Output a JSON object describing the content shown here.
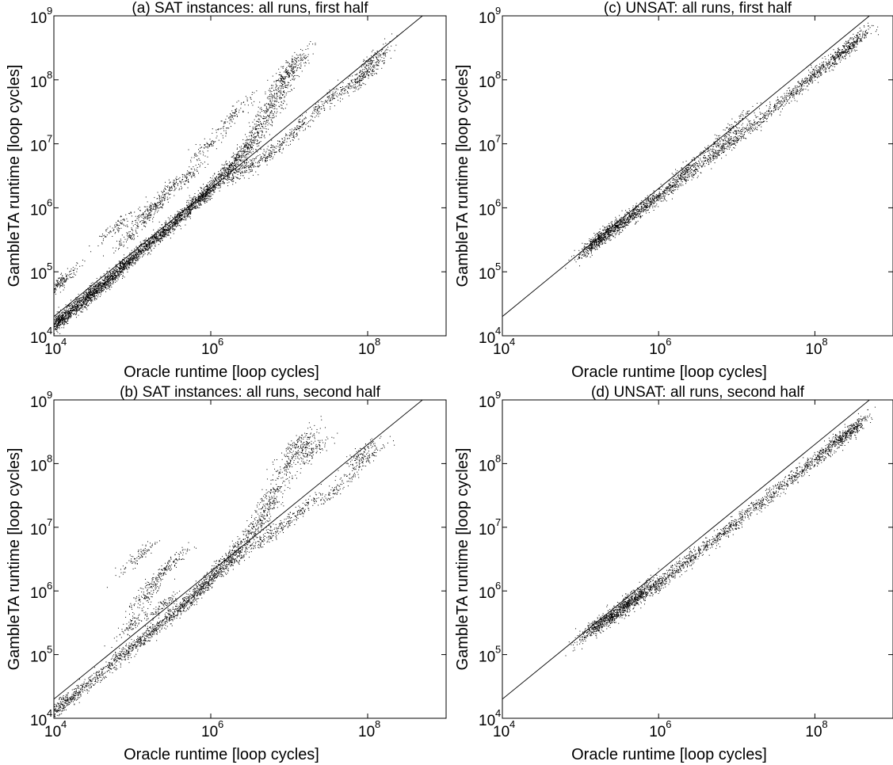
{
  "chart_data": [
    {
      "id": "a",
      "type": "scatter",
      "title": "(a) SAT instances: all runs, first half",
      "xlabel": "Oracle runtime [loop cycles]",
      "ylabel": "GambleTA runtime [loop cycles]",
      "xscale": "log",
      "yscale": "log",
      "xlim": [
        10000,
        1000000000
      ],
      "ylim": [
        10000,
        1000000000
      ],
      "xticks": [
        {
          "base": "10",
          "exp": "4"
        },
        {
          "base": "10",
          "exp": "6"
        },
        {
          "base": "10",
          "exp": "8"
        }
      ],
      "yticks": [
        {
          "base": "10",
          "exp": "4"
        },
        {
          "base": "10",
          "exp": "5"
        },
        {
          "base": "10",
          "exp": "6"
        },
        {
          "base": "10",
          "exp": "7"
        },
        {
          "base": "10",
          "exp": "8"
        },
        {
          "base": "10",
          "exp": "9"
        }
      ],
      "reference_line": {
        "slope": 1,
        "factor": 2.0
      },
      "grid": false,
      "points": [
        [
          11000,
          14500
        ],
        [
          11500,
          16000
        ],
        [
          12000,
          17000
        ],
        [
          12500,
          18000
        ],
        [
          13000,
          20000
        ],
        [
          14000,
          22000
        ],
        [
          11200,
          60000
        ],
        [
          12800,
          75000
        ],
        [
          20000,
          28000
        ],
        [
          22000,
          30000
        ],
        [
          25000,
          40000
        ],
        [
          30000,
          45000
        ],
        [
          32000,
          50000
        ],
        [
          35000,
          52000
        ],
        [
          40000,
          60000
        ],
        [
          45000,
          65000
        ],
        [
          50000,
          70000
        ],
        [
          60000,
          90000
        ],
        [
          70000,
          110000
        ],
        [
          80000,
          130000
        ],
        [
          90000,
          150000
        ],
        [
          100000,
          160000
        ],
        [
          120000,
          200000
        ],
        [
          150000,
          250000
        ],
        [
          180000,
          300000
        ],
        [
          200000,
          330000
        ],
        [
          250000,
          420000
        ],
        [
          300000,
          500000
        ],
        [
          350000,
          600000
        ],
        [
          400000,
          700000
        ],
        [
          500000,
          900000
        ],
        [
          600000,
          1100000
        ],
        [
          700000,
          1300000
        ],
        [
          800000,
          1500000
        ],
        [
          900000,
          1700000
        ],
        [
          1000000,
          2000000
        ],
        [
          1200000,
          2600000
        ],
        [
          1500000,
          3500000
        ],
        [
          2000000,
          5000000
        ],
        [
          2500000,
          7000000
        ],
        [
          3000000,
          9000000
        ],
        [
          4000000,
          15000000
        ],
        [
          5000000,
          25000000
        ],
        [
          6000000,
          40000000
        ],
        [
          7000000,
          60000000
        ],
        [
          8000000,
          100000000
        ],
        [
          10000000,
          120000000
        ],
        [
          12000000,
          200000000
        ],
        [
          2000000,
          3500000
        ],
        [
          3000000,
          4500000
        ],
        [
          5000000,
          6000000
        ],
        [
          8000000,
          10000000
        ],
        [
          15000000,
          20000000
        ],
        [
          30000000,
          45000000
        ],
        [
          60000000,
          80000000
        ],
        [
          90000000,
          110000000
        ],
        [
          100000,
          400000
        ],
        [
          200000,
          1000000
        ],
        [
          300000,
          2000000
        ],
        [
          500000,
          3000000
        ],
        [
          60000,
          500000
        ],
        [
          150000,
          800000
        ],
        [
          1000000,
          10000000
        ],
        [
          2000000,
          30000000
        ],
        [
          110000000,
          200000000
        ],
        [
          120000000,
          170000000
        ]
      ]
    },
    {
      "id": "c",
      "type": "scatter",
      "title": "(c) UNSAT: all runs, first half",
      "xlabel": "Oracle runtime [loop cycles]",
      "ylabel": "GambleTA runtime [loop cycles]",
      "xscale": "log",
      "yscale": "log",
      "xlim": [
        10000,
        1000000000
      ],
      "ylim": [
        10000,
        1000000000
      ],
      "xticks": [
        {
          "base": "10",
          "exp": "4"
        },
        {
          "base": "10",
          "exp": "6"
        },
        {
          "base": "10",
          "exp": "8"
        }
      ],
      "yticks": [
        {
          "base": "10",
          "exp": "4"
        },
        {
          "base": "10",
          "exp": "5"
        },
        {
          "base": "10",
          "exp": "6"
        },
        {
          "base": "10",
          "exp": "7"
        },
        {
          "base": "10",
          "exp": "8"
        },
        {
          "base": "10",
          "exp": "9"
        }
      ],
      "reference_line": {
        "slope": 1,
        "factor": 2.0
      },
      "grid": false,
      "points": [
        [
          140000,
          260000
        ],
        [
          150000,
          280000
        ],
        [
          160000,
          300000
        ],
        [
          180000,
          330000
        ],
        [
          200000,
          380000
        ],
        [
          250000,
          450000
        ],
        [
          300000,
          520000
        ],
        [
          350000,
          580000
        ],
        [
          400000,
          650000
        ],
        [
          500000,
          800000
        ],
        [
          600000,
          950000
        ],
        [
          800000,
          1200000
        ],
        [
          1000000,
          1500000
        ],
        [
          1500000,
          2200000
        ],
        [
          2000000,
          2800000
        ],
        [
          3000000,
          4000000
        ],
        [
          5000000,
          6500000
        ],
        [
          8000000,
          10000000
        ],
        [
          10000000,
          12500000
        ],
        [
          20000000,
          24000000
        ],
        [
          30000000,
          36000000
        ],
        [
          50000000,
          60000000
        ],
        [
          80000000,
          95000000
        ],
        [
          100000000,
          120000000
        ],
        [
          150000000,
          180000000
        ],
        [
          200000000,
          240000000
        ],
        [
          250000000,
          300000000
        ],
        [
          300000000,
          350000000
        ],
        [
          320000000,
          380000000
        ],
        [
          2000000,
          3500000
        ],
        [
          5000000,
          9000000
        ],
        [
          10000000,
          20000000
        ]
      ]
    },
    {
      "id": "b",
      "type": "scatter",
      "title": "(b) SAT instances: all runs, second half",
      "xlabel": "Oracle runtime [loop cycles]",
      "ylabel": "GambleTA runtime [loop cycles]",
      "xscale": "log",
      "yscale": "log",
      "xlim": [
        10000,
        1000000000
      ],
      "ylim": [
        10000,
        1000000000
      ],
      "xticks": [
        {
          "base": "10",
          "exp": "4"
        },
        {
          "base": "10",
          "exp": "6"
        },
        {
          "base": "10",
          "exp": "8"
        }
      ],
      "yticks": [
        {
          "base": "10",
          "exp": "4"
        },
        {
          "base": "10",
          "exp": "5"
        },
        {
          "base": "10",
          "exp": "6"
        },
        {
          "base": "10",
          "exp": "7"
        },
        {
          "base": "10",
          "exp": "8"
        },
        {
          "base": "10",
          "exp": "9"
        }
      ],
      "reference_line": {
        "slope": 1,
        "factor": 2.0
      },
      "grid": false,
      "points": [
        [
          10000,
          13000
        ],
        [
          12000,
          15500
        ],
        [
          15000,
          19000
        ],
        [
          20000,
          25000
        ],
        [
          30000,
          38000
        ],
        [
          50000,
          64000
        ],
        [
          80000,
          100000
        ],
        [
          100000,
          130000
        ],
        [
          150000,
          195000
        ],
        [
          200000,
          260000
        ],
        [
          300000,
          390000
        ],
        [
          400000,
          520000
        ],
        [
          500000,
          650000
        ],
        [
          600000,
          800000
        ],
        [
          800000,
          1100000
        ],
        [
          1000000,
          1500000
        ],
        [
          1200000,
          2000000
        ],
        [
          1500000,
          2800000
        ],
        [
          2000000,
          4000000
        ],
        [
          3000000,
          7000000
        ],
        [
          4000000,
          12000000
        ],
        [
          5000000,
          20000000
        ],
        [
          7000000,
          40000000
        ],
        [
          10000000,
          100000000
        ],
        [
          12000000,
          200000000
        ],
        [
          15000000,
          180000000
        ],
        [
          20000000,
          150000000
        ],
        [
          2000000,
          3000000
        ],
        [
          4000000,
          6000000
        ],
        [
          8000000,
          10000000
        ],
        [
          15000000,
          20000000
        ],
        [
          40000000,
          40000000
        ],
        [
          100000,
          300000
        ],
        [
          150000,
          800000
        ],
        [
          200000,
          1500000
        ],
        [
          300000,
          2500000
        ],
        [
          120000,
          3500000
        ],
        [
          250000,
          600000
        ],
        [
          100000000,
          120000000
        ],
        [
          80000000,
          140000000
        ]
      ]
    },
    {
      "id": "d",
      "type": "scatter",
      "title": "(d) UNSAT: all runs, second half",
      "xlabel": "Oracle runtime [loop cycles]",
      "ylabel": "GambleTA runtime [loop cycles]",
      "xscale": "log",
      "yscale": "log",
      "xlim": [
        10000,
        1000000000
      ],
      "ylim": [
        10000,
        1000000000
      ],
      "xticks": [
        {
          "base": "10",
          "exp": "4"
        },
        {
          "base": "10",
          "exp": "6"
        },
        {
          "base": "10",
          "exp": "8"
        }
      ],
      "yticks": [
        {
          "base": "10",
          "exp": "4"
        },
        {
          "base": "10",
          "exp": "5"
        },
        {
          "base": "10",
          "exp": "6"
        },
        {
          "base": "10",
          "exp": "7"
        },
        {
          "base": "10",
          "exp": "8"
        },
        {
          "base": "10",
          "exp": "9"
        }
      ],
      "reference_line": {
        "slope": 1,
        "factor": 2.0
      },
      "grid": false,
      "points": [
        [
          140000,
          250000
        ],
        [
          150000,
          270000
        ],
        [
          170000,
          290000
        ],
        [
          200000,
          330000
        ],
        [
          250000,
          400000
        ],
        [
          300000,
          460000
        ],
        [
          350000,
          520000
        ],
        [
          400000,
          600000
        ],
        [
          500000,
          700000
        ],
        [
          600000,
          820000
        ],
        [
          800000,
          1050000
        ],
        [
          1000000,
          1300000
        ],
        [
          1500000,
          1900000
        ],
        [
          2000000,
          2500000
        ],
        [
          3000000,
          3700000
        ],
        [
          5000000,
          6000000
        ],
        [
          8000000,
          9500000
        ],
        [
          10000000,
          12000000
        ],
        [
          20000000,
          24000000
        ],
        [
          30000000,
          35000000
        ],
        [
          50000000,
          58000000
        ],
        [
          80000000,
          92000000
        ],
        [
          100000000,
          115000000
        ],
        [
          150000000,
          170000000
        ],
        [
          200000000,
          230000000
        ],
        [
          250000000,
          280000000
        ],
        [
          300000000,
          330000000
        ],
        [
          330000000,
          380000000
        ],
        [
          400000,
          700000
        ],
        [
          600000,
          1000000
        ]
      ]
    }
  ]
}
